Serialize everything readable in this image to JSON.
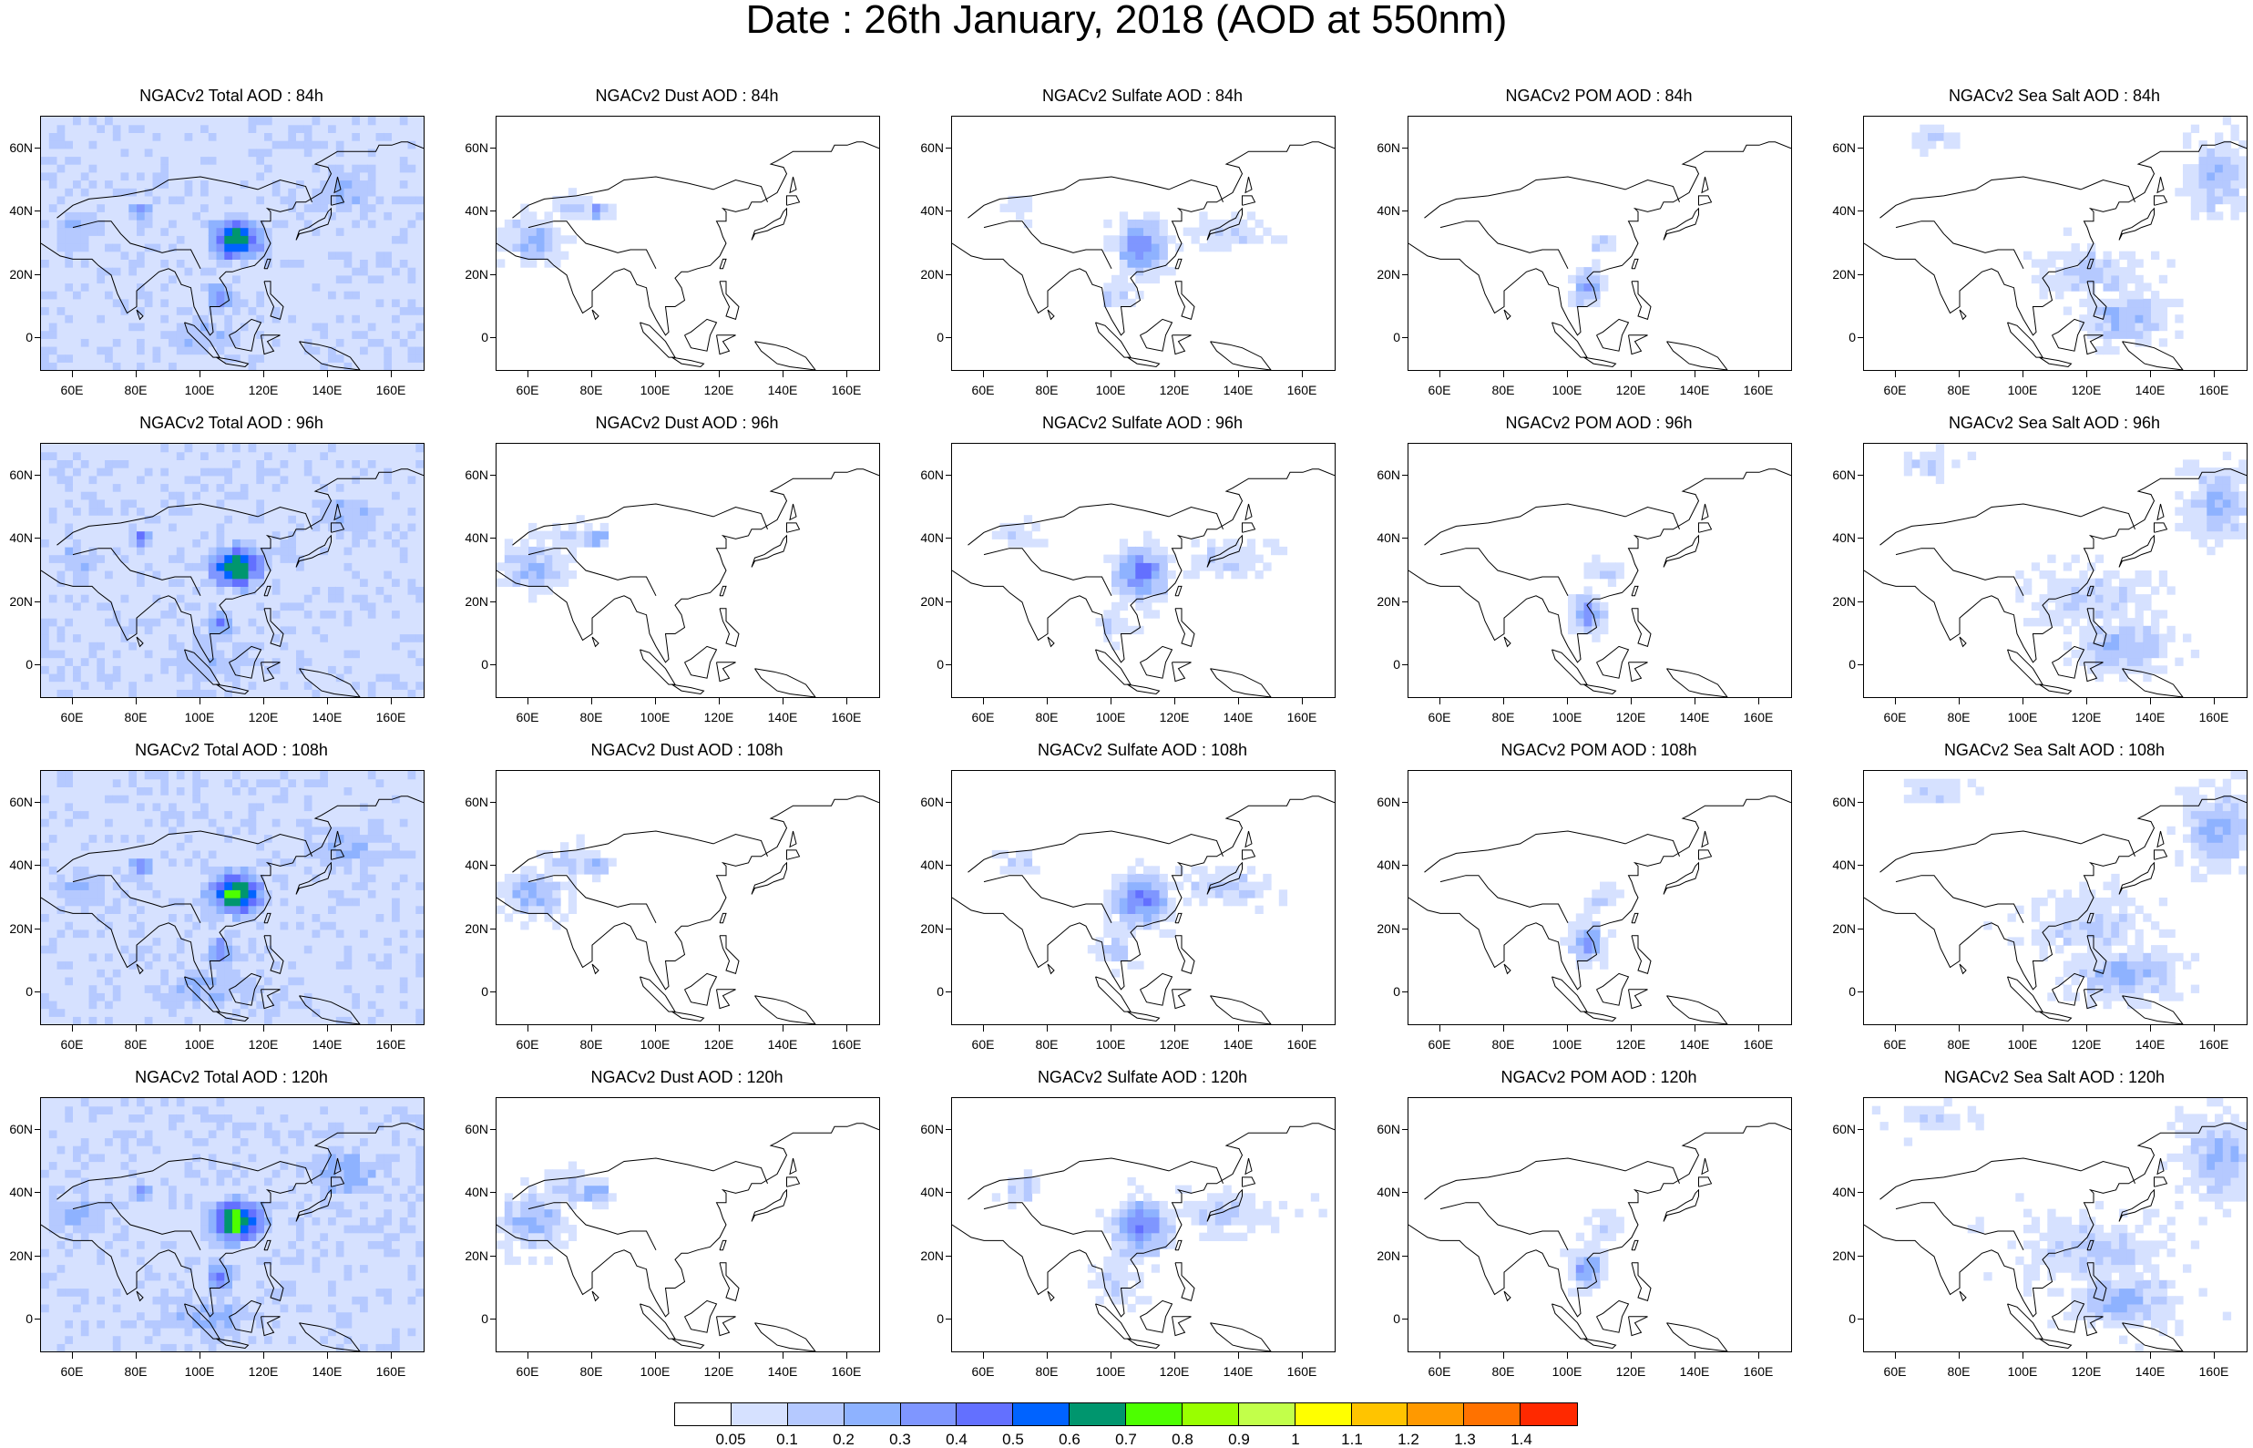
{
  "title": "Date : 26th January, 2018 (AOD at 550nm)",
  "panels": [
    [
      "NGACv2 Total AOD : 84h",
      "NGACv2 Dust AOD : 84h",
      "NGACv2 Sulfate AOD : 84h",
      "NGACv2 POM AOD : 84h",
      "NGACv2 Sea Salt AOD : 84h"
    ],
    [
      "NGACv2 Total AOD : 96h",
      "NGACv2 Dust AOD : 96h",
      "NGACv2 Sulfate AOD : 96h",
      "NGACv2 POM AOD : 96h",
      "NGACv2 Sea Salt AOD : 96h"
    ],
    [
      "NGACv2 Total AOD : 108h",
      "NGACv2 Dust AOD : 108h",
      "NGACv2 Sulfate AOD : 108h",
      "NGACv2 POM AOD : 108h",
      "NGACv2 Sea Salt AOD : 108h"
    ],
    [
      "NGACv2 Total AOD : 120h",
      "NGACv2 Dust AOD : 120h",
      "NGACv2 Sulfate AOD : 120h",
      "NGACv2 POM AOD : 120h",
      "NGACv2 Sea Salt  AOD : 120h"
    ]
  ],
  "axes": {
    "lon_range": [
      50,
      170
    ],
    "lat_range": [
      -10,
      70
    ],
    "lon_labels": [
      "60E",
      "80E",
      "100E",
      "120E",
      "140E",
      "160E"
    ],
    "lon_values": [
      60,
      80,
      100,
      120,
      140,
      160
    ],
    "lat_labels": [
      "60N",
      "40N",
      "20N",
      "0"
    ],
    "lat_values": [
      60,
      40,
      20,
      0
    ]
  },
  "colorbar": {
    "levels": [
      "0.05",
      "0.1",
      "0.2",
      "0.3",
      "0.4",
      "0.5",
      "0.6",
      "0.7",
      "0.8",
      "0.9",
      "1",
      "1.1",
      "1.2",
      "1.3",
      "1.4"
    ],
    "colors": [
      "#ffffff",
      "#d6e1ff",
      "#b5c9ff",
      "#8eb2ff",
      "#7f96ff",
      "#6370ff",
      "#0063ff",
      "#00966e",
      "#4dff00",
      "#99ff00",
      "#c2ff4a",
      "#ffff00",
      "#ffc400",
      "#ff9900",
      "#ff7200",
      "#ff2900"
    ]
  }
}
